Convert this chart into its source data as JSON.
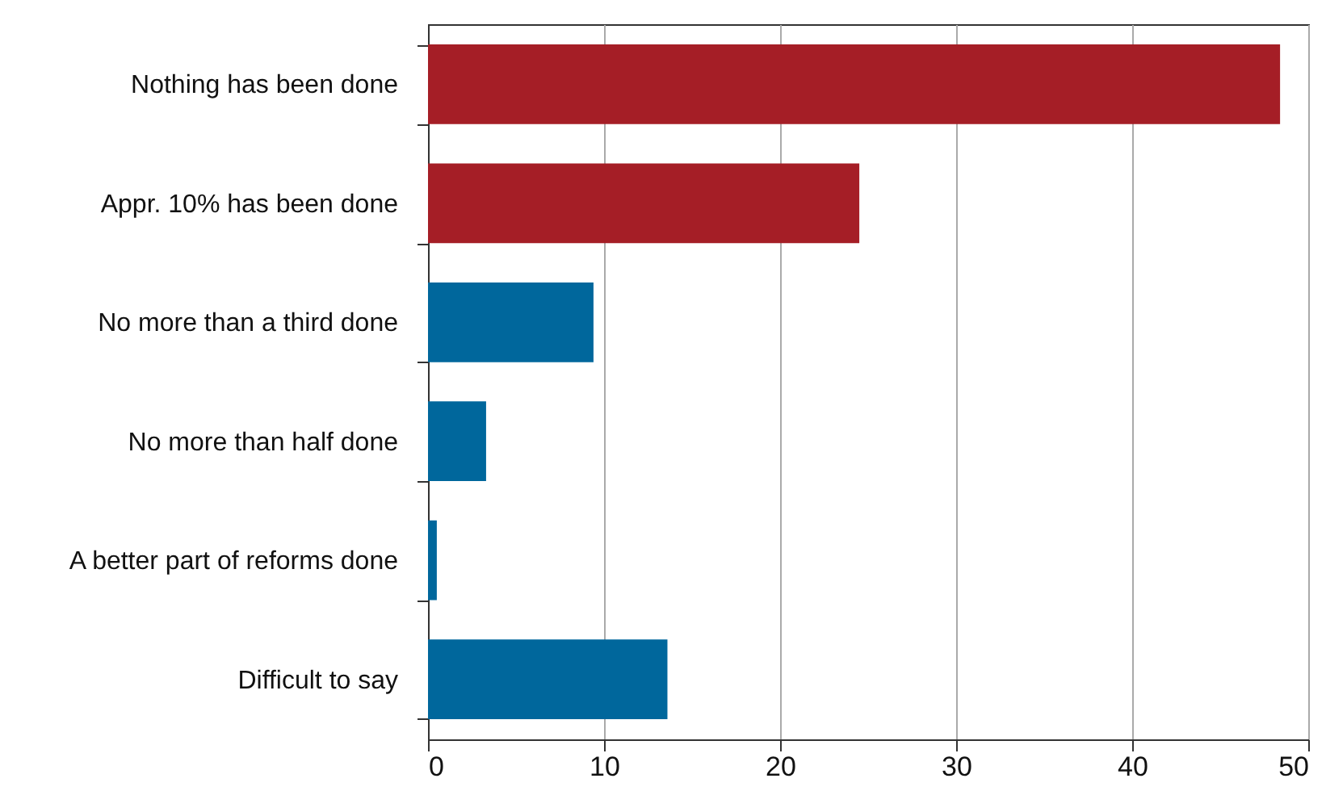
{
  "chart_data": {
    "type": "bar",
    "orientation": "horizontal",
    "categories": [
      "Nothing has been done",
      "Appr. 10% has been done",
      "No more than a third done",
      "No more than half done",
      "A better part of reforms done",
      "Difficult to say"
    ],
    "values": [
      48.4,
      24.5,
      9.4,
      3.3,
      0.5,
      13.6
    ],
    "colors": [
      "#a51e26",
      "#a51e26",
      "#00679c",
      "#00679c",
      "#00679c",
      "#00679c"
    ],
    "xlim": [
      0,
      50
    ],
    "xticks": [
      0,
      10,
      20,
      30,
      40,
      50
    ],
    "grid": "x"
  }
}
